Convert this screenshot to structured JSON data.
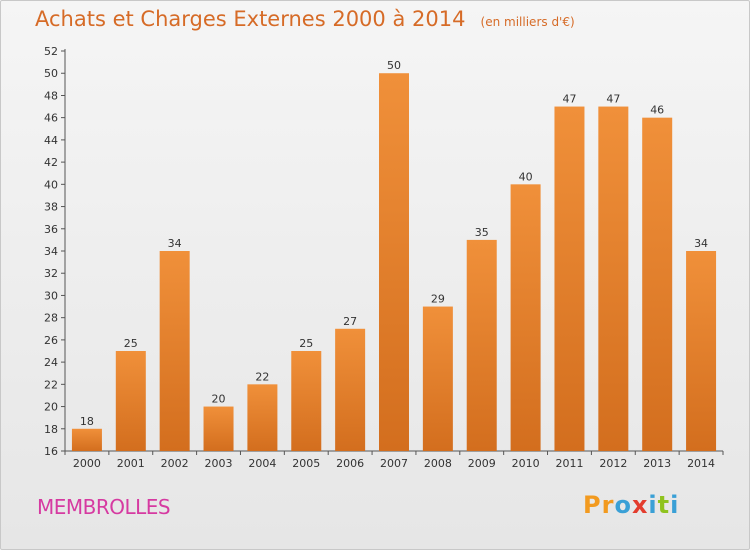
{
  "chart_data": {
    "type": "bar",
    "title": "Achats et Charges Externes 2000 à 2014",
    "unit": "(en milliers d'€)",
    "categories": [
      "2000",
      "2001",
      "2002",
      "2003",
      "2004",
      "2005",
      "2006",
      "2007",
      "2008",
      "2009",
      "2010",
      "2011",
      "2012",
      "2013",
      "2014"
    ],
    "values": [
      18,
      25,
      34,
      20,
      22,
      25,
      27,
      50,
      29,
      35,
      40,
      47,
      47,
      46,
      34
    ],
    "data_labels": [
      "18",
      "25",
      "34",
      "20",
      "22",
      "25",
      "27",
      "50",
      "29",
      "35",
      "40",
      "47",
      "47",
      "46",
      "34"
    ],
    "ylim": [
      16,
      52
    ],
    "yticks": [
      "16",
      "18",
      "20",
      "22",
      "24",
      "26",
      "28",
      "30",
      "32",
      "34",
      "36",
      "38",
      "40",
      "42",
      "44",
      "46",
      "48",
      "50",
      "52"
    ],
    "grid": false,
    "legend": "none",
    "bar_color": "#f0903a",
    "bar_color_dark": "#d36e1e"
  },
  "footer": {
    "commune": "MEMBROLLES",
    "logo": "Proxiti"
  },
  "colors": {
    "title": "#d66b27",
    "commune": "#d63aa1",
    "logo_letters": [
      "#f29a1f",
      "#f29a1f",
      "#3aa0d6",
      "#e33c2d",
      "#3aa0d6",
      "#8fc31f",
      "#3aa0d6"
    ]
  }
}
